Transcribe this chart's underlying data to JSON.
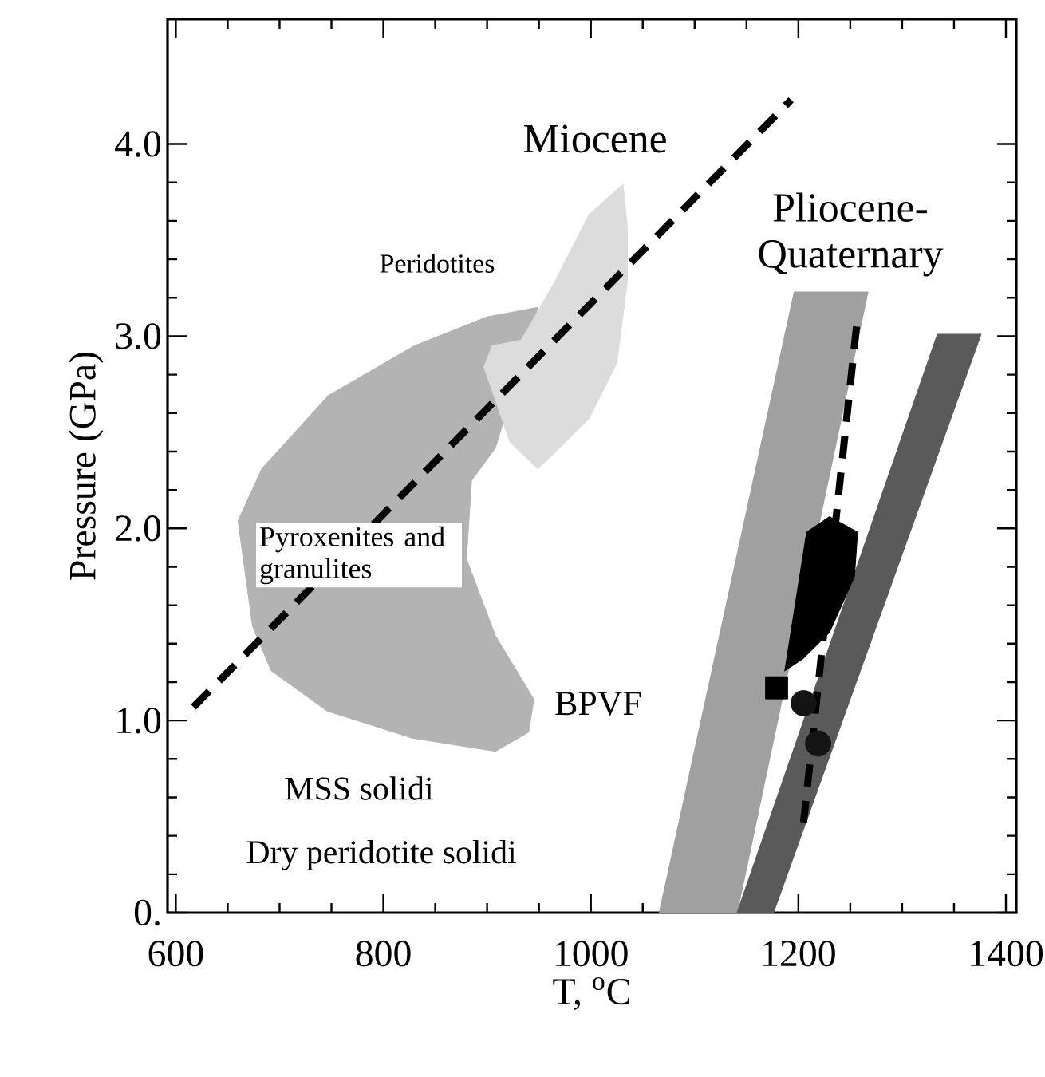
{
  "chart_data": {
    "type": "line",
    "xlabel": "T, $^{o}$C",
    "ylabel": "Pressure (GPa)",
    "xlim": [
      592,
      1410
    ],
    "ylim": [
      0,
      4.65
    ],
    "xticks": [
      600,
      800,
      1000,
      1200,
      1400
    ],
    "yticks": [
      {
        "value": 0,
        "label": "0."
      },
      {
        "value": 1,
        "label": "1.0"
      },
      {
        "value": 2,
        "label": "2.0"
      },
      {
        "value": 3,
        "label": "3.0"
      },
      {
        "value": 4,
        "label": "4.0"
      }
    ],
    "grid": false,
    "series": [
      {
        "type": "area",
        "color": "#b3b3b3",
        "x": [
          949,
          900,
          830,
          747,
          683,
          660,
          674,
          692,
          746,
          827,
          908,
          940,
          945,
          908,
          880,
          885,
          908
        ],
        "values": [
          3.15,
          3.1,
          2.95,
          2.69,
          2.31,
          2.04,
          1.49,
          1.26,
          1.05,
          0.91,
          0.84,
          0.94,
          1.11,
          1.44,
          1.84,
          2.25,
          2.42
        ]
      },
      {
        "type": "area",
        "color": "#dcdcdc",
        "x": [
          1031,
          1035,
          1035,
          1025,
          998,
          949,
          922,
          897,
          905,
          933,
          965,
          998
        ],
        "values": [
          3.79,
          3.57,
          3.28,
          2.86,
          2.57,
          2.31,
          2.45,
          2.84,
          2.95,
          2.98,
          3.28,
          3.63
        ]
      },
      {
        "type": "area",
        "color": "#a0a0a0",
        "x": [
          1066,
          1141,
          1267,
          1196
        ],
        "values": [
          0,
          0,
          3.23,
          3.23
        ]
      },
      {
        "type": "area",
        "color": "#5a5a5a",
        "x": [
          1141,
          1176,
          1376,
          1334
        ],
        "values": [
          0,
          0,
          3.01,
          3.01
        ]
      },
      {
        "color": "#000000",
        "line_style": "dashed",
        "x": [
          617,
          1193
        ],
        "values": [
          1.07,
          4.23
        ]
      },
      {
        "type": "area",
        "color": "#000000",
        "x": [
          1208,
          1230,
          1257,
          1254,
          1230,
          1204,
          1187
        ],
        "values": [
          1.98,
          2.06,
          1.98,
          1.75,
          1.46,
          1.32,
          1.26
        ]
      },
      {
        "color": "#000000",
        "line_style": "dashed",
        "x": [
          1256,
          1205
        ],
        "values": [
          3.05,
          0.47
        ]
      },
      {
        "type": "scatter",
        "color": "#141414",
        "marker": "circle",
        "x": [
          1205,
          1219
        ],
        "values": [
          1.09,
          0.88
        ]
      },
      {
        "type": "scatter",
        "color": "#000000",
        "marker": "square",
        "x": [
          1179
        ],
        "values": [
          1.17
        ]
      }
    ],
    "annotations": [
      "Miocene",
      "Pliocene-Quaternary",
      "Peridotites",
      "Pyroxenites and granulites",
      "BPVF",
      "MSS solidi",
      "Dry peridotite solidi"
    ]
  }
}
